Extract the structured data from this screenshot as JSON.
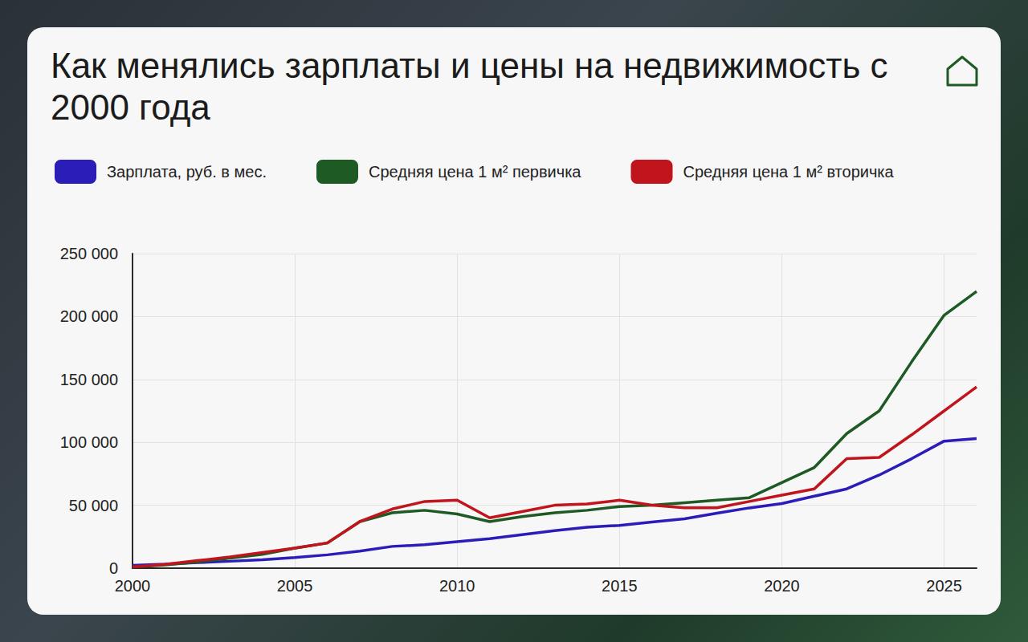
{
  "chart_data": {
    "type": "line",
    "title": "Как менялись зарплаты и цены на недвижимость с 2000 года",
    "x": [
      2000,
      2001,
      2002,
      2003,
      2004,
      2005,
      2006,
      2007,
      2008,
      2009,
      2010,
      2011,
      2012,
      2013,
      2014,
      2015,
      2016,
      2017,
      2018,
      2019,
      2020,
      2021,
      2022,
      2023,
      2024,
      2025,
      2026
    ],
    "series": [
      {
        "name": "Зарплата, руб. в мес.",
        "color": "#2b1db8",
        "values": [
          2200,
          3200,
          4400,
          5500,
          6700,
          8500,
          10600,
          13600,
          17300,
          18600,
          21000,
          23400,
          26600,
          29800,
          32500,
          34000,
          36700,
          39200,
          43700,
          47900,
          51300,
          57200,
          63000,
          74000,
          87000,
          101000,
          103000
        ]
      },
      {
        "name": "Средняя цена 1 м² первичка",
        "color": "#1e5a24",
        "values": [
          1000,
          2500,
          5000,
          8000,
          11000,
          16000,
          20000,
          37000,
          44000,
          46000,
          43000,
          37000,
          41000,
          44000,
          46000,
          49000,
          50000,
          52000,
          54000,
          56000,
          68000,
          80000,
          107000,
          125000,
          164000,
          201000,
          220000
        ]
      },
      {
        "name": "Средняя цена 1 м² вторичка",
        "color": "#c0151c",
        "values": [
          1000,
          3000,
          6000,
          9000,
          12500,
          16000,
          20000,
          37000,
          47000,
          53000,
          54000,
          40000,
          45000,
          50000,
          51000,
          54000,
          50000,
          48000,
          48000,
          53000,
          58000,
          63000,
          87000,
          88000,
          106000,
          125000,
          144000
        ]
      }
    ],
    "xlim": [
      2000,
      2026
    ],
    "xticks": [
      2000,
      2005,
      2010,
      2015,
      2020,
      2025
    ],
    "ylim": [
      0,
      250000
    ],
    "yticks": [
      0,
      {
        "value": 50000,
        "label": "50 000"
      },
      {
        "value": 100000,
        "label": "100 000"
      },
      {
        "value": 150000,
        "label": "150 000"
      },
      {
        "value": 200000,
        "label": "200 000"
      },
      {
        "value": 250000,
        "label": "250 000"
      }
    ],
    "grid": true,
    "legend": "top"
  }
}
